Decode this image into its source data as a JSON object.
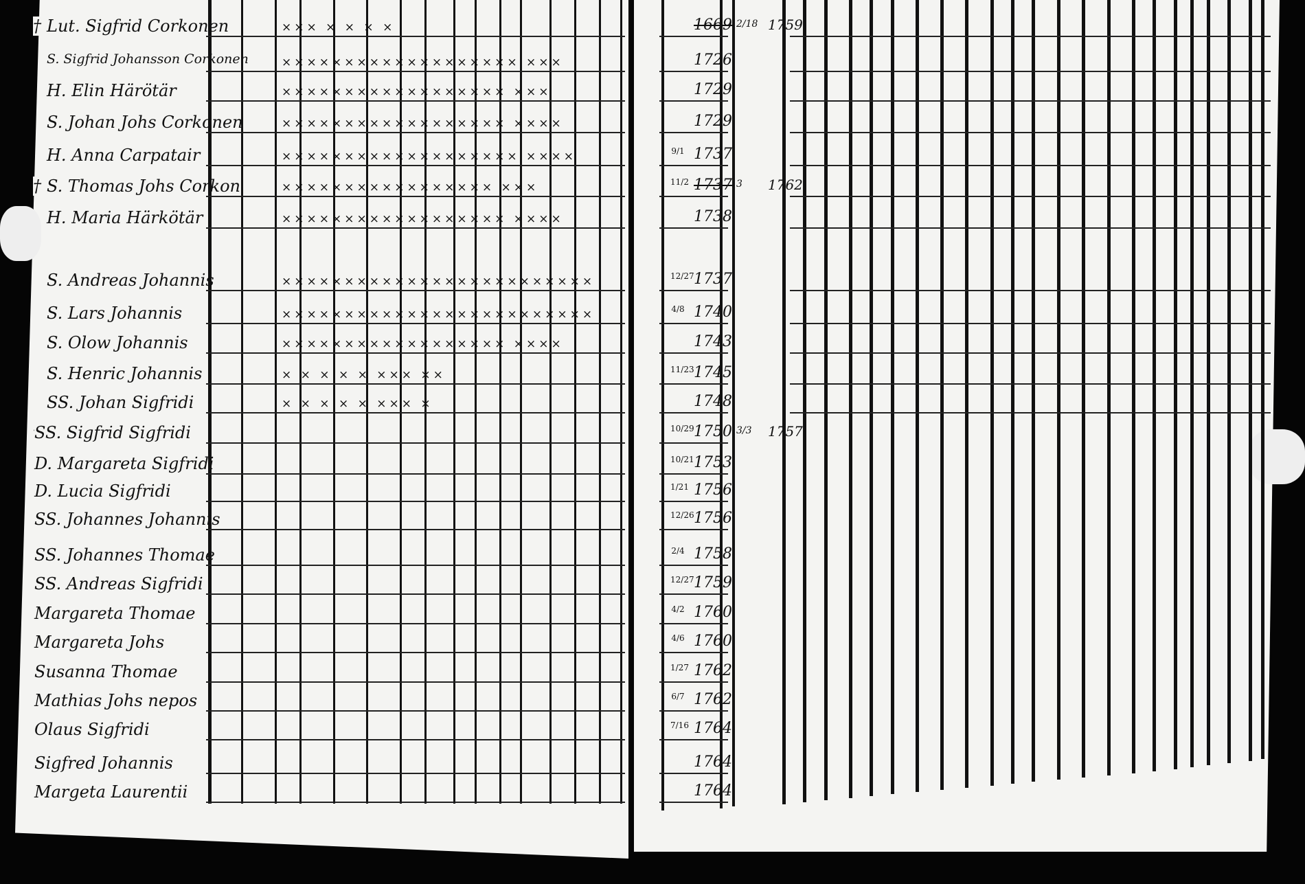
{
  "register": {
    "rows": [
      {
        "prefix": "†",
        "name": "Lut. Sigfrid Corkonen",
        "marks": "××× ×  ×   ×  ×",
        "date": "",
        "year": "1669",
        "year_crossed": true,
        "death_date": "2/18",
        "death_year": "1759"
      },
      {
        "prefix": "",
        "name": "S. Sigfrid Johansson Corkonen",
        "marks": "×××××××××××××××××××   ×××",
        "date": "",
        "year": "1726"
      },
      {
        "prefix": "",
        "name": "H. Elin Härötär",
        "marks": "××××××××××××××××××     ×××",
        "date": "",
        "year": "1729"
      },
      {
        "prefix": "",
        "name": "S. Johan Johs Corkonen",
        "marks": "××××××××××××××××××   ××××",
        "date": "",
        "year": "1729"
      },
      {
        "prefix": "",
        "name": "H. Anna Carpatair",
        "marks": "×××××××××××××××××××  ××××",
        "date": "9/1",
        "year": "1737"
      },
      {
        "prefix": "†",
        "name": "S. Thomas Johs Corkon",
        "marks": "×××××××××××××××××     ×××",
        "date": "11/2",
        "year": "1737",
        "year_crossed": true,
        "death_date": "3",
        "death_year": "1762"
      },
      {
        "prefix": "",
        "name": "H. Maria Härkötär",
        "marks": "××××××××××××××××××    ××××",
        "date": "",
        "year": "1738"
      },
      {
        "prefix": "",
        "name": "S. Andreas Johannis",
        "marks": "×××××××××××××××××××××××××",
        "date": "12/27",
        "year": "1737"
      },
      {
        "prefix": "",
        "name": "S. Lars Johannis",
        "marks": "×××××××××××××××××××××××××",
        "date": "4/8",
        "year": "1740"
      },
      {
        "prefix": "",
        "name": "S. Olow Johannis",
        "marks": "××××××××××××××××××   ××××",
        "date": "",
        "year": "1743"
      },
      {
        "prefix": "",
        "name": "S. Henric Johannis",
        "marks": "× ×  × ×      × ×××     ××",
        "date": "11/23",
        "year": "1745"
      },
      {
        "prefix": "",
        "name": "SS. Johan Sigfridi",
        "marks": "× ×  × ×      × ×××     ×",
        "date": "",
        "year": "1748"
      },
      {
        "prefix": "†",
        "name": "SS. Sigfrid Sigfridi",
        "marks": "",
        "date": "10/29",
        "year": "1750",
        "death_date": "3/3",
        "death_year": "1757"
      },
      {
        "prefix": "",
        "name": "D. Margareta Sigfridi",
        "marks": "",
        "date": "10/21",
        "year": "1753"
      },
      {
        "prefix": "",
        "name": "D. Lucia Sigfridi",
        "marks": "",
        "date": "1/21",
        "year": "1756"
      },
      {
        "prefix": "",
        "name": "SS. Johannes Johannis",
        "marks": "",
        "date": "12/26",
        "year": "1756"
      },
      {
        "prefix": "",
        "name": "SS. Johannes Thomae",
        "marks": "",
        "date": "2/4",
        "year": "1758"
      },
      {
        "prefix": "",
        "name": "SS. Andreas Sigfridi",
        "marks": "",
        "date": "12/27",
        "year": "1759"
      },
      {
        "prefix": "",
        "name": "Margareta Thomae",
        "marks": "",
        "date": "4/2",
        "year": "1760"
      },
      {
        "prefix": "",
        "name": "Margareta Johs",
        "marks": "",
        "date": "4/6",
        "year": "1760"
      },
      {
        "prefix": "",
        "name": "Susanna Thomae",
        "marks": "",
        "date": "1/27",
        "year": "1762"
      },
      {
        "prefix": "",
        "name": "Mathias Johs nepos",
        "marks": "",
        "date": "6/7",
        "year": "1762"
      },
      {
        "prefix": "",
        "name": "Olaus Sigfridi",
        "marks": "",
        "date": "7/16",
        "year": "1764"
      },
      {
        "prefix": "",
        "name": "Sigfred Johannis",
        "marks": "",
        "date": "",
        "year": "1764"
      },
      {
        "prefix": "",
        "name": "Margeta Laurentii",
        "marks": "",
        "date": "",
        "year": "1764"
      }
    ]
  }
}
